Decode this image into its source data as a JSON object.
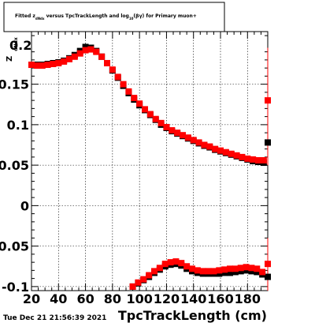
{
  "chart_data": {
    "type": "scatter",
    "title": {
      "prefix": "Fitted  z",
      "sub1": "dNdx",
      "middle": " versus TpcTrackLength and log",
      "sub2": "10",
      "suffix": "(βγ) for Primary muon+"
    },
    "xlabel": "TpcTrackLength (cm)",
    "ylabel": "z_dNdx",
    "ylabel_visible": "Z",
    "ylabel_sub": "dNdx",
    "xlim": [
      20,
      195
    ],
    "ylim": [
      -0.105,
      0.215
    ],
    "x_ticks": [
      20,
      40,
      60,
      80,
      100,
      120,
      140,
      160,
      180
    ],
    "y_ticks": [
      -0.1,
      -0.05,
      0,
      0.05,
      0.1,
      0.15
    ],
    "x_tick_labels": [
      "20",
      "40",
      "60",
      "80",
      "100",
      "120",
      "140",
      "160",
      "180"
    ],
    "y_tick_labels": [
      "-0.1",
      "-0.05",
      "0",
      "0.05",
      "0.1",
      "0.15"
    ],
    "top_label": "0.2",
    "grid": true,
    "footer": "Tue Dec 21 21:56:39 2021",
    "series": [
      {
        "color": "#000000",
        "upper": [
          [
            20,
            0.174
          ],
          [
            24,
            0.174
          ],
          [
            28,
            0.174
          ],
          [
            32,
            0.175
          ],
          [
            36,
            0.176
          ],
          [
            40,
            0.177
          ],
          [
            44,
            0.179
          ],
          [
            48,
            0.182
          ],
          [
            52,
            0.186
          ],
          [
            56,
            0.191
          ],
          [
            60,
            0.196
          ],
          [
            64,
            0.195
          ],
          [
            68,
            0.191
          ],
          [
            72,
            0.184
          ],
          [
            76,
            0.176
          ],
          [
            80,
            0.167
          ],
          [
            84,
            0.158
          ],
          [
            88,
            0.148
          ],
          [
            92,
            0.139
          ],
          [
            96,
            0.131
          ],
          [
            100,
            0.124
          ],
          [
            104,
            0.118
          ],
          [
            108,
            0.112
          ],
          [
            112,
            0.106
          ],
          [
            116,
            0.1
          ],
          [
            120,
            0.096
          ],
          [
            124,
            0.092
          ],
          [
            128,
            0.089
          ],
          [
            132,
            0.086
          ],
          [
            136,
            0.083
          ],
          [
            140,
            0.08
          ],
          [
            144,
            0.077
          ],
          [
            148,
            0.074
          ],
          [
            152,
            0.072
          ],
          [
            156,
            0.069
          ],
          [
            160,
            0.067
          ],
          [
            164,
            0.065
          ],
          [
            168,
            0.063
          ],
          [
            172,
            0.061
          ],
          [
            176,
            0.059
          ],
          [
            180,
            0.057
          ],
          [
            184,
            0.055
          ],
          [
            188,
            0.054
          ],
          [
            192,
            0.053
          ],
          [
            195,
            0.078
          ]
        ],
        "lower": [
          [
            95,
            -0.1
          ],
          [
            99,
            -0.096
          ],
          [
            103,
            -0.092
          ],
          [
            107,
            -0.088
          ],
          [
            111,
            -0.083
          ],
          [
            115,
            -0.079
          ],
          [
            119,
            -0.075
          ],
          [
            123,
            -0.073
          ],
          [
            127,
            -0.072
          ],
          [
            131,
            -0.074
          ],
          [
            135,
            -0.078
          ],
          [
            139,
            -0.081
          ],
          [
            143,
            -0.083
          ],
          [
            147,
            -0.084
          ],
          [
            151,
            -0.084
          ],
          [
            155,
            -0.084
          ],
          [
            159,
            -0.084
          ],
          [
            163,
            -0.083
          ],
          [
            167,
            -0.083
          ],
          [
            171,
            -0.082
          ],
          [
            175,
            -0.081
          ],
          [
            179,
            -0.08
          ],
          [
            183,
            -0.081
          ],
          [
            187,
            -0.082
          ],
          [
            191,
            -0.085
          ],
          [
            195,
            -0.088
          ]
        ],
        "error_bars": [
          {
            "x": 195,
            "y_low": -0.1,
            "y_high": -0.072
          }
        ]
      },
      {
        "color": "#ff0000",
        "upper": [
          [
            20,
            0.174
          ],
          [
            24,
            0.173
          ],
          [
            28,
            0.173
          ],
          [
            32,
            0.174
          ],
          [
            36,
            0.175
          ],
          [
            40,
            0.176
          ],
          [
            44,
            0.178
          ],
          [
            48,
            0.181
          ],
          [
            52,
            0.184
          ],
          [
            56,
            0.188
          ],
          [
            60,
            0.192
          ],
          [
            64,
            0.193
          ],
          [
            68,
            0.19
          ],
          [
            72,
            0.184
          ],
          [
            76,
            0.176
          ],
          [
            80,
            0.168
          ],
          [
            84,
            0.159
          ],
          [
            88,
            0.15
          ],
          [
            92,
            0.141
          ],
          [
            96,
            0.133
          ],
          [
            100,
            0.126
          ],
          [
            104,
            0.119
          ],
          [
            108,
            0.113
          ],
          [
            112,
            0.107
          ],
          [
            116,
            0.102
          ],
          [
            120,
            0.097
          ],
          [
            124,
            0.093
          ],
          [
            128,
            0.09
          ],
          [
            132,
            0.087
          ],
          [
            136,
            0.084
          ],
          [
            140,
            0.081
          ],
          [
            144,
            0.078
          ],
          [
            148,
            0.075
          ],
          [
            152,
            0.073
          ],
          [
            156,
            0.07
          ],
          [
            160,
            0.068
          ],
          [
            164,
            0.066
          ],
          [
            168,
            0.064
          ],
          [
            172,
            0.062
          ],
          [
            176,
            0.06
          ],
          [
            180,
            0.058
          ],
          [
            184,
            0.057
          ],
          [
            188,
            0.056
          ],
          [
            192,
            0.056
          ],
          [
            195,
            0.13
          ]
        ],
        "lower": [
          [
            95,
            -0.1
          ],
          [
            99,
            -0.095
          ],
          [
            103,
            -0.091
          ],
          [
            107,
            -0.086
          ],
          [
            111,
            -0.081
          ],
          [
            115,
            -0.077
          ],
          [
            119,
            -0.072
          ],
          [
            123,
            -0.07
          ],
          [
            127,
            -0.069
          ],
          [
            131,
            -0.071
          ],
          [
            135,
            -0.075
          ],
          [
            139,
            -0.078
          ],
          [
            143,
            -0.08
          ],
          [
            147,
            -0.081
          ],
          [
            151,
            -0.081
          ],
          [
            155,
            -0.081
          ],
          [
            159,
            -0.08
          ],
          [
            163,
            -0.079
          ],
          [
            167,
            -0.078
          ],
          [
            171,
            -0.078
          ],
          [
            175,
            -0.077
          ],
          [
            179,
            -0.076
          ],
          [
            183,
            -0.077
          ],
          [
            187,
            -0.078
          ],
          [
            191,
            -0.082
          ],
          [
            195,
            -0.072
          ]
        ],
        "error_bars": [
          {
            "x": 195,
            "y_low": 0.05,
            "y_high": 0.195
          },
          {
            "x": 195,
            "y_low": -0.105,
            "y_high": -0.04
          }
        ]
      }
    ]
  }
}
